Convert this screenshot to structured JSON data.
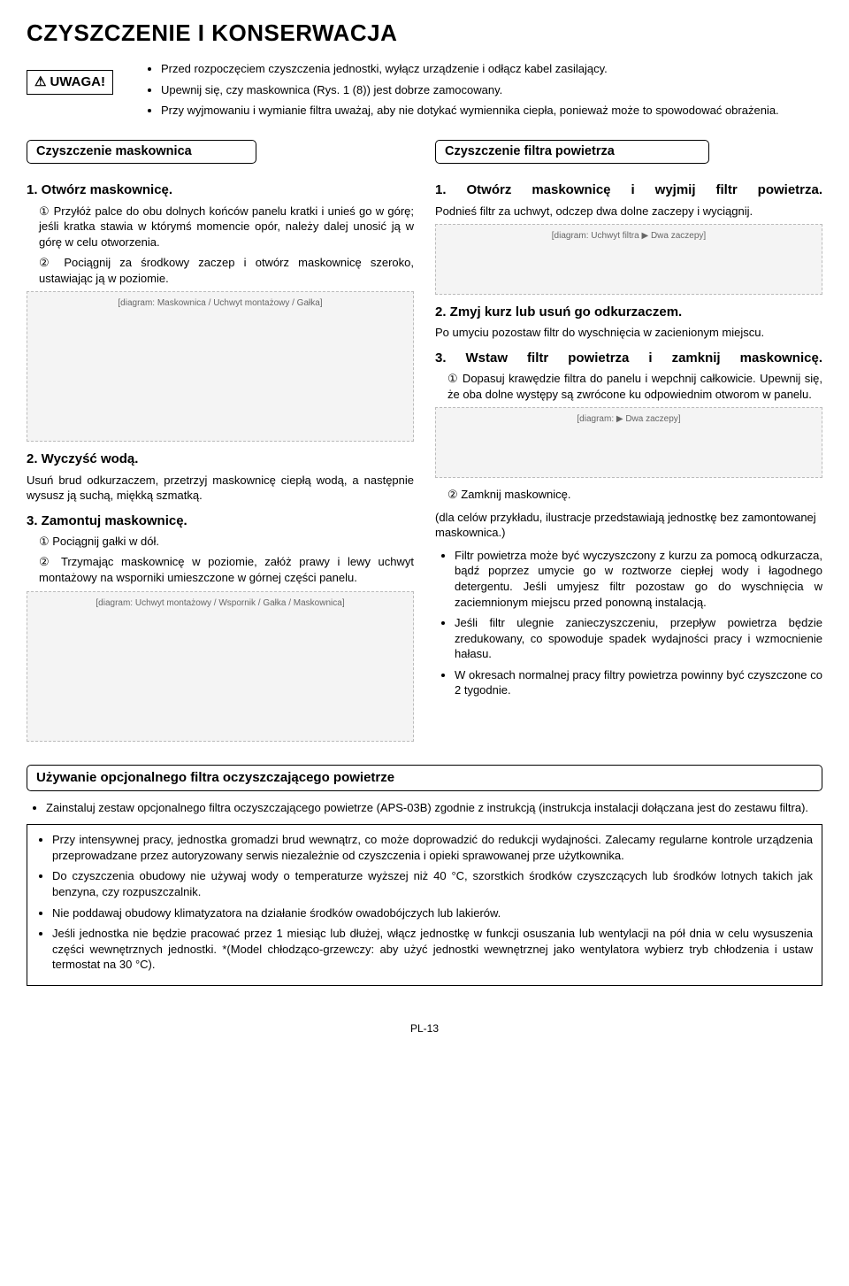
{
  "title": "CZYSZCZENIE I KONSERWACJA",
  "warning": {
    "label": "UWAGA!",
    "items": [
      "Przed rozpoczęciem czyszczenia jednostki, wyłącz urządzenie i odłącz kabel zasilający.",
      "Upewnij się, czy maskownica (Rys. 1 (8)) jest dobrze zamocowany.",
      "Przy wyjmowaniu i wymianie filtra uważaj, aby nie dotykać wymiennika ciepła, ponieważ może to spowodować obrażenia."
    ]
  },
  "left": {
    "heading": "Czyszczenie maskownica",
    "s1": {
      "title": "1. Otwórz maskownicę.",
      "a": "① Przyłóż palce do obu dolnych końców panelu kratki i unieś go w górę; jeśli kratka stawia w którymś momencie opór, należy dalej unosić ją w górę w celu otworzenia.",
      "b": "② Pociągnij za środkowy zaczep i otwórz maskownicę szeroko, ustawiając ją w poziomie.",
      "fig": "[diagram: Maskownica / Uchwyt montażowy / Gałka]"
    },
    "s2": {
      "title": "2. Wyczyść wodą.",
      "text": "Usuń brud odkurzaczem, przetrzyj maskownicę ciepłą wodą, a następnie wysusz ją suchą, miękką szmatką."
    },
    "s3": {
      "title": "3. Zamontuj maskownicę.",
      "a": "① Pociągnij gałki w dół.",
      "b": "② Trzymając maskownicę w poziomie, załóż prawy i lewy uchwyt montażowy na wsporniki umieszczone w górnej części panelu.",
      "fig": "[diagram: Uchwyt montażowy / Wspornik / Gałka / Maskownica]"
    }
  },
  "right": {
    "heading": "Czyszczenie filtra powietrza",
    "s1": {
      "title": "1. Otwórz maskownicę i wyjmij filtr powietrza.",
      "text": "Podnieś filtr za uchwyt, odczep dwa dolne zaczepy i wyciągnij.",
      "fig": "[diagram: Uchwyt filtra ▶ Dwa zaczepy]"
    },
    "s2": {
      "title": "2. Zmyj kurz lub usuń go odkurzaczem.",
      "text": "Po umyciu pozostaw filtr do wyschnięcia w zacienionym miejscu."
    },
    "s3": {
      "title": "3. Wstaw filtr powietrza i zamknij maskownicę.",
      "a": "① Dopasuj krawędzie filtra do panelu i wepchnij całkowicie. Upewnij się, że oba dolne występy są zwrócone ku odpowiednim otworom w panelu.",
      "fig": "[diagram: ▶ Dwa zaczepy]",
      "b": "② Zamknij maskownicę."
    },
    "paren": "(dla celów przykładu, ilustracje przedstawiają jednostkę bez zamontowanej maskownica.)",
    "bullets": [
      "Filtr powietrza może być wyczyszczony z kurzu za pomocą odkurzacza, bądź poprzez umycie go w roztworze ciepłej wody i łagodnego detergentu. Jeśli umyjesz filtr pozostaw go do wyschnięcia w zaciemnionym miejscu przed ponowną instalacją.",
      "Jeśli filtr ulegnie zanieczyszczeniu, przepływ powietrza będzie zredukowany, co spowoduje spadek wydajności pracy i wzmocnienie hałasu.",
      "W okresach normalnej pracy filtry powietrza powinny być czyszczone co 2 tygodnie."
    ]
  },
  "optional": {
    "heading": "Używanie opcjonalnego filtra oczyszczającego powietrze",
    "item": "Zainstaluj zestaw opcjonalnego filtra oczyszczającego powietrze (APS-03B) zgodnie z instrukcją (instrukcja instalacji dołączana jest do zestawu filtra)."
  },
  "box": [
    "Przy intensywnej pracy, jednostka gromadzi brud wewnątrz, co może doprowadzić do redukcji wydajności. Zalecamy regularne kontrole urządzenia przeprowadzane przez autoryzowany serwis niezależnie od czyszczenia i opieki sprawowanej prze użytkownika.",
    "Do czyszczenia obudowy nie używaj wody o temperaturze wyższej niż 40 °C, szorstkich środków czyszczących lub środków lotnych takich jak benzyna, czy rozpuszczalnik.",
    "Nie poddawaj obudowy klimatyzatora na działanie środków owadobójczych lub lakierów.",
    "Jeśli jednostka nie będzie pracować przez 1 miesiąc lub dłużej, włącz jednostkę w funkcji osuszania lub wentylacji na pół dnia w celu wysuszenia części wewnętrznych jednostki. *(Model chłodząco-grzewczy: aby użyć jednostki wewnętrznej jako wentylatora wybierz tryb chłodzenia i ustaw termostat na 30 °C)."
  ],
  "pagefoot": "PL-13"
}
